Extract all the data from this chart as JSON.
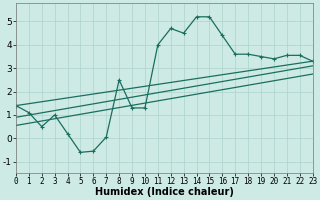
{
  "bg_color": "#cdeae4",
  "grid_color": "#acd4cc",
  "line_color": "#1a6e60",
  "line_width": 0.9,
  "marker": "+",
  "marker_size": 3,
  "marker_lw": 0.8,
  "curve1_x": [
    0,
    1,
    2,
    3,
    4,
    5,
    6,
    7,
    8,
    9,
    10,
    11,
    12,
    13,
    14,
    15,
    16,
    17,
    18,
    19,
    20,
    21,
    22,
    23
  ],
  "curve1_y": [
    1.4,
    1.1,
    0.5,
    1.0,
    0.2,
    -0.6,
    -0.55,
    0.05,
    2.5,
    1.3,
    1.3,
    4.0,
    4.7,
    4.5,
    5.2,
    5.2,
    4.4,
    3.6,
    3.6,
    3.5,
    3.4,
    3.55,
    3.55,
    3.3
  ],
  "curve2_x": [
    0,
    23
  ],
  "curve2_y": [
    1.4,
    3.3
  ],
  "curve3_x": [
    0,
    23
  ],
  "curve3_y": [
    0.9,
    3.1
  ],
  "curve4_x": [
    0,
    23
  ],
  "curve4_y": [
    0.55,
    2.75
  ],
  "xlim": [
    0,
    23
  ],
  "ylim": [
    -1.5,
    5.8
  ],
  "yticks": [
    -1,
    0,
    1,
    2,
    3,
    4,
    5
  ],
  "xticks": [
    0,
    1,
    2,
    3,
    4,
    5,
    6,
    7,
    8,
    9,
    10,
    11,
    12,
    13,
    14,
    15,
    16,
    17,
    18,
    19,
    20,
    21,
    22,
    23
  ],
  "xlabel": "Humidex (Indice chaleur)",
  "xlabel_fontsize": 7,
  "tick_fontsize": 5.5,
  "ytick_fontsize": 6.5
}
